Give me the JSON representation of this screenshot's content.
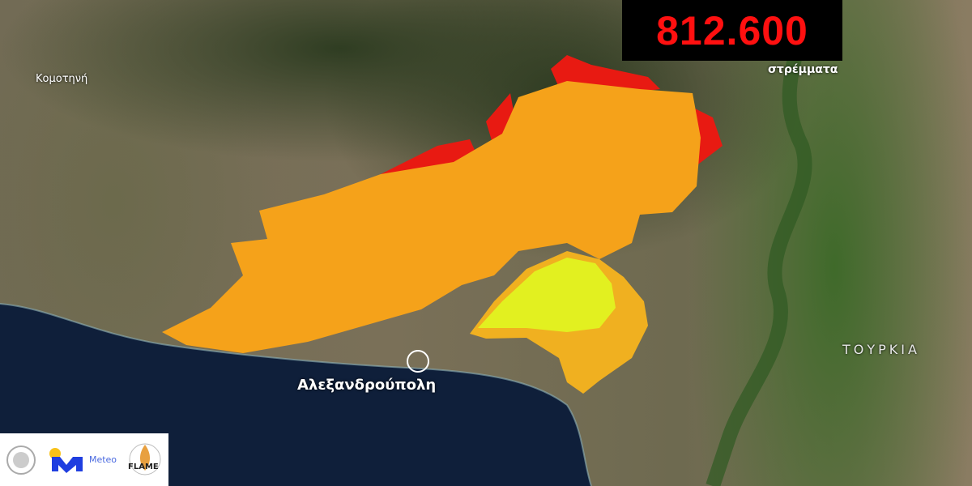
{
  "counter": {
    "value": "812.600",
    "unit": "στρέμματα"
  },
  "places": {
    "komotini": "Κομοτηνή",
    "alexandroupoli": "Αλεξανδρούπολη",
    "turkey": "ΤΟΥΡΚΙΑ"
  },
  "logos": {
    "meteo": "Meteo",
    "flame": "FLAME"
  },
  "colors": {
    "burned_high": "#e81a12",
    "burned_main": "#f5a21a",
    "burned_recent": "#e2f020",
    "sea": "#0f1f3a",
    "counter_text": "#ff1010"
  }
}
